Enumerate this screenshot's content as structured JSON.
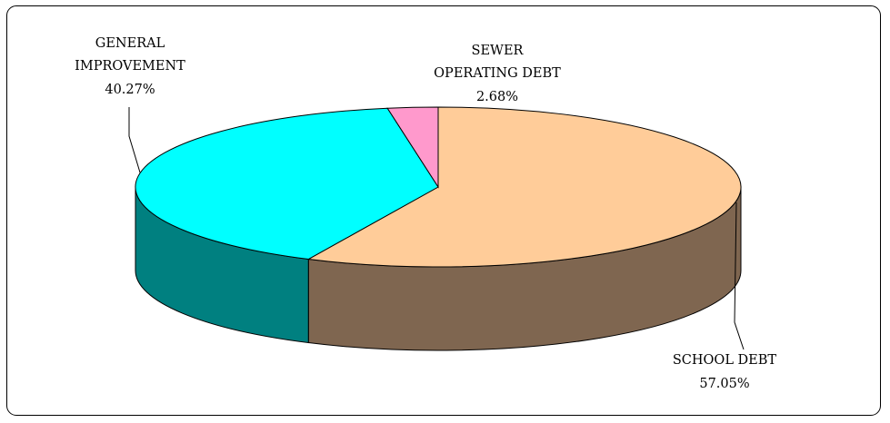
{
  "chart_data": {
    "type": "pie",
    "style": "3d",
    "title": "",
    "slices": [
      {
        "name": "SCHOOL DEBT",
        "value": 57.05,
        "percent_label": "57.05%",
        "color_top": "#ffcc99",
        "color_side": "#7f6650"
      },
      {
        "name": "GENERAL IMPROVEMENT",
        "name_lines": [
          "GENERAL",
          "IMPROVEMENT"
        ],
        "value": 40.27,
        "percent_label": "40.27%",
        "color_top": "#00ffff",
        "color_side": "#008080"
      },
      {
        "name": "SEWER OPERATING DEBT",
        "name_lines": [
          "SEWER",
          "OPERATING DEBT"
        ],
        "value": 2.68,
        "percent_label": "2.68%",
        "color_top": "#ff99cc",
        "color_side": "#7f4c66"
      }
    ],
    "legend": "none"
  },
  "labels": {
    "school": {
      "line1": "SCHOOL DEBT",
      "line2": "57.05%"
    },
    "general": {
      "line1": "GENERAL",
      "line2": "IMPROVEMENT",
      "line3": "40.27%"
    },
    "sewer": {
      "line1": "SEWER",
      "line2": "OPERATING DEBT",
      "line3": "2.68%"
    }
  }
}
